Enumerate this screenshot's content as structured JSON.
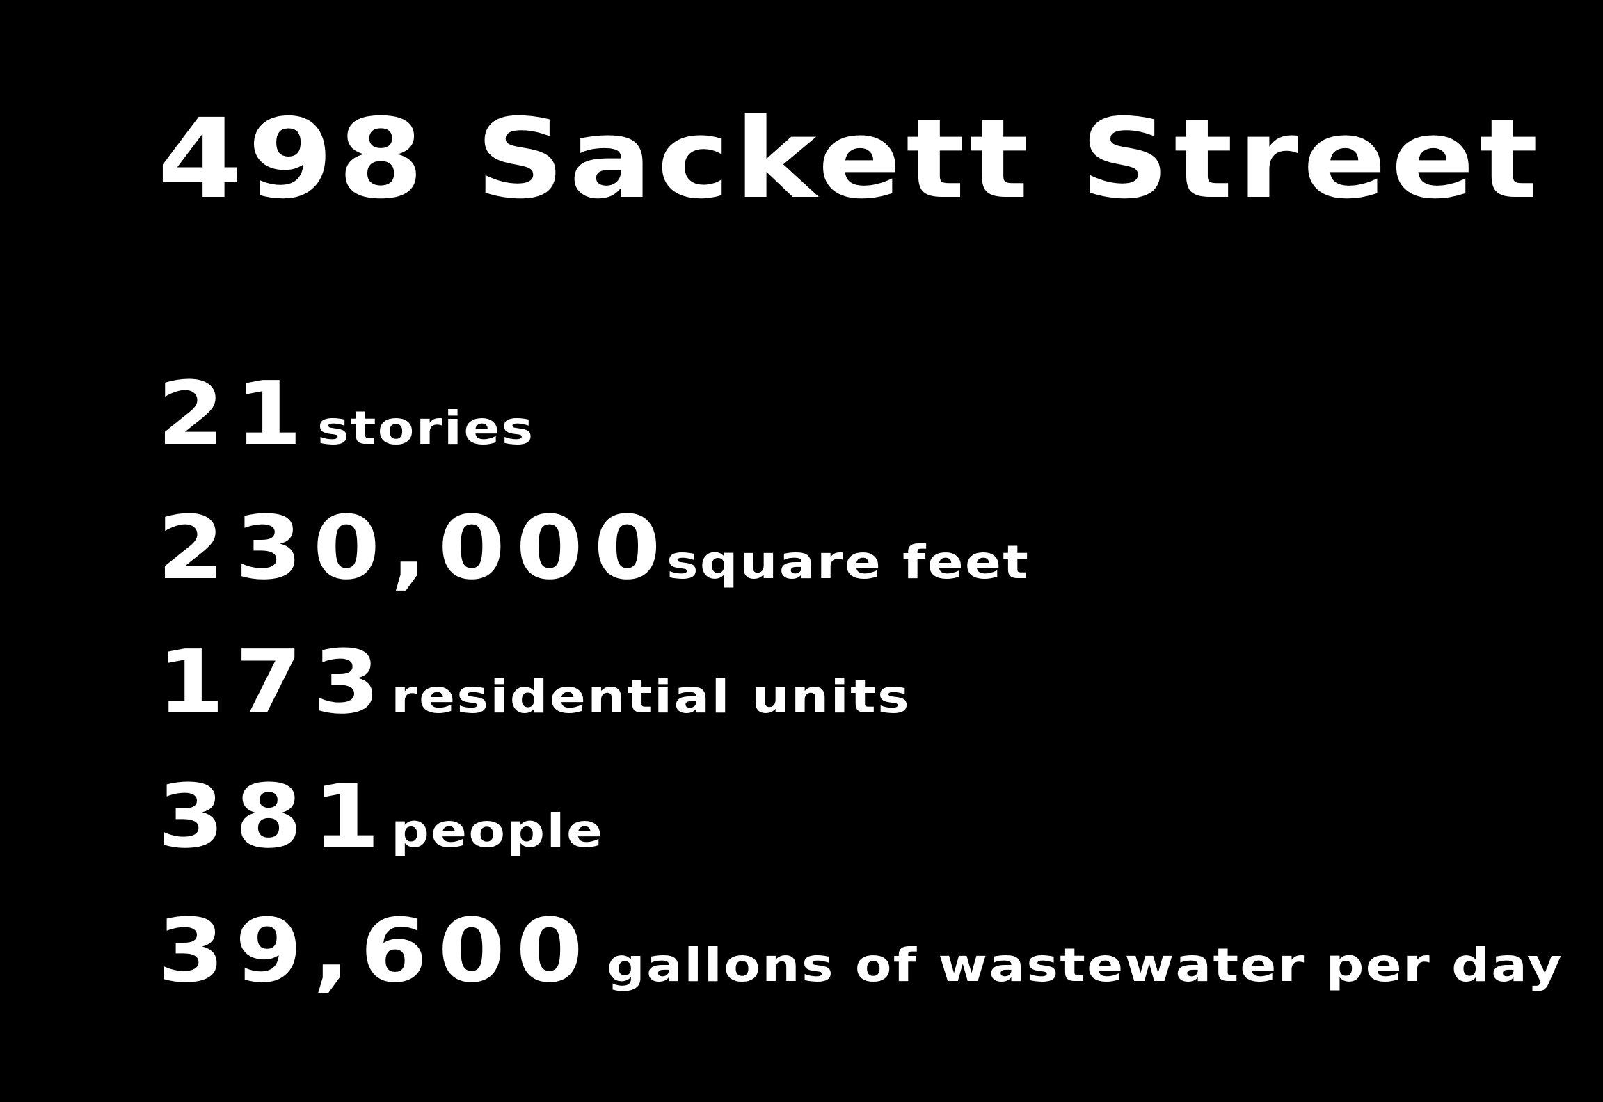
{
  "title": "498 Sackett Street",
  "stats": [
    {
      "value": "21",
      "unit": "stories"
    },
    {
      "value": "230,000",
      "unit": "square feet"
    },
    {
      "value": "173",
      "unit": "residential units"
    },
    {
      "value": "381",
      "unit": "people"
    },
    {
      "value": "39,600",
      "unit": "gallons of wastewater per day"
    }
  ],
  "colors": {
    "background": "#000000",
    "text": "#ffffff"
  }
}
